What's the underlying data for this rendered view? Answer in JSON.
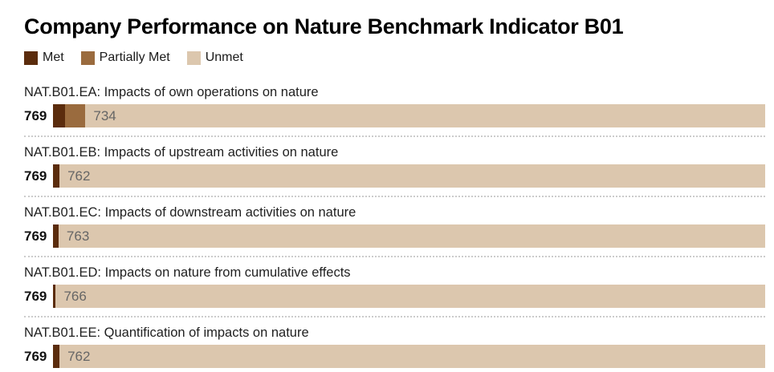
{
  "title": "Company Performance on Nature Benchmark Indicator B01",
  "legend": [
    {
      "label": "Met",
      "color": "#5b2c0d",
      "icon": "swatch-square"
    },
    {
      "label": "Partially Met",
      "color": "#9a6b3e",
      "icon": "swatch-square"
    },
    {
      "label": "Unmet",
      "color": "#dcc7ae",
      "icon": "swatch-square"
    }
  ],
  "chart_data": {
    "type": "bar",
    "orientation": "horizontal",
    "stacked": true,
    "title": "Company Performance on Nature Benchmark Indicator B01",
    "series_names": [
      "Met",
      "Partially Met",
      "Unmet"
    ],
    "total_companies": 769,
    "xlim": [
      0,
      769
    ],
    "grid": false,
    "legend_position": "top-left",
    "rows": [
      {
        "label": "NAT.B01.EA: Impacts of own operations on nature",
        "total": 769,
        "met": 13,
        "partially_met": 22,
        "unmet": 734,
        "total_label": "769",
        "unmet_label": "734"
      },
      {
        "label": "NAT.B01.EB: Impacts of upstream activities on nature",
        "total": 769,
        "met": 7,
        "partially_met": 0,
        "unmet": 762,
        "total_label": "769",
        "unmet_label": "762"
      },
      {
        "label": "NAT.B01.EC: Impacts of downstream activities on nature",
        "total": 769,
        "met": 6,
        "partially_met": 0,
        "unmet": 763,
        "total_label": "769",
        "unmet_label": "763"
      },
      {
        "label": "NAT.B01.ED: Impacts on nature from cumulative effects",
        "total": 769,
        "met": 3,
        "partially_met": 0,
        "unmet": 766,
        "total_label": "769",
        "unmet_label": "766"
      },
      {
        "label": "NAT.B01.EE: Quantification of impacts on nature",
        "total": 769,
        "met": 7,
        "partially_met": 0,
        "unmet": 762,
        "total_label": "769",
        "unmet_label": "762"
      }
    ]
  },
  "colors": {
    "met": "#5b2c0d",
    "partially_met": "#9a6b3e",
    "unmet": "#dcc7ae",
    "unmet_value_text": "#666666",
    "separator": "#cccccc",
    "text": "#1f1f1f",
    "background": "#ffffff"
  }
}
